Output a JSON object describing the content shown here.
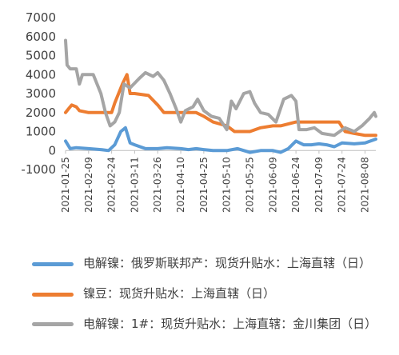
{
  "chart_data": {
    "type": "line",
    "title": "",
    "xlabel": "",
    "ylabel": "",
    "ylim": [
      -1000,
      7000
    ],
    "yticks": [
      "-1000",
      "0",
      "1000",
      "2000",
      "3000",
      "4000",
      "5000",
      "6000",
      "7000"
    ],
    "grid": false,
    "legend_position": "bottom",
    "x_tick_labels": [
      "2021-01-25",
      "2021-02-09",
      "2021-02-24",
      "2021-03-11",
      "2021-03-26",
      "2021-04-10",
      "2021-04-25",
      "2021-05-10",
      "2021-05-25",
      "2021-06-09",
      "2021-06-24",
      "2021-07-09",
      "2021-07-24",
      "2021-08-08"
    ],
    "x_range": [
      "2021-01-25",
      "2021-08-15"
    ],
    "series": [
      {
        "name": "电解镍：俄罗斯联邦产：现货升贴水：上海直辖（日）",
        "color": "#5B9BD5",
        "points": [
          [
            "2021-01-25",
            500
          ],
          [
            "2021-01-28",
            100
          ],
          [
            "2021-02-01",
            150
          ],
          [
            "2021-02-09",
            100
          ],
          [
            "2021-02-17",
            50
          ],
          [
            "2021-02-22",
            0
          ],
          [
            "2021-02-26",
            300
          ],
          [
            "2021-03-02",
            1000
          ],
          [
            "2021-03-05",
            1200
          ],
          [
            "2021-03-08",
            400
          ],
          [
            "2021-03-11",
            300
          ],
          [
            "2021-03-18",
            100
          ],
          [
            "2021-03-26",
            100
          ],
          [
            "2021-04-01",
            150
          ],
          [
            "2021-04-10",
            100
          ],
          [
            "2021-04-15",
            50
          ],
          [
            "2021-04-20",
            100
          ],
          [
            "2021-04-25",
            50
          ],
          [
            "2021-05-01",
            0
          ],
          [
            "2021-05-10",
            0
          ],
          [
            "2021-05-17",
            100
          ],
          [
            "2021-05-25",
            -100
          ],
          [
            "2021-06-01",
            0
          ],
          [
            "2021-06-09",
            0
          ],
          [
            "2021-06-14",
            -100
          ],
          [
            "2021-06-19",
            100
          ],
          [
            "2021-06-24",
            500
          ],
          [
            "2021-06-29",
            300
          ],
          [
            "2021-07-04",
            300
          ],
          [
            "2021-07-09",
            350
          ],
          [
            "2021-07-14",
            300
          ],
          [
            "2021-07-19",
            200
          ],
          [
            "2021-07-24",
            400
          ],
          [
            "2021-08-01",
            350
          ],
          [
            "2021-08-08",
            400
          ],
          [
            "2021-08-15",
            600
          ]
        ]
      },
      {
        "name": "镍豆：现货升贴水：上海直辖（日）",
        "color": "#ED7D31",
        "points": [
          [
            "2021-01-25",
            2000
          ],
          [
            "2021-01-27",
            2200
          ],
          [
            "2021-01-29",
            2400
          ],
          [
            "2021-02-01",
            2300
          ],
          [
            "2021-02-03",
            2100
          ],
          [
            "2021-02-09",
            2000
          ],
          [
            "2021-02-24",
            2000
          ],
          [
            "2021-02-26",
            2500
          ],
          [
            "2021-03-03",
            3500
          ],
          [
            "2021-03-06",
            4000
          ],
          [
            "2021-03-08",
            3000
          ],
          [
            "2021-03-11",
            3000
          ],
          [
            "2021-03-20",
            2900
          ],
          [
            "2021-03-26",
            2400
          ],
          [
            "2021-03-30",
            2000
          ],
          [
            "2021-04-10",
            2000
          ],
          [
            "2021-04-20",
            2000
          ],
          [
            "2021-04-25",
            1800
          ],
          [
            "2021-05-01",
            1500
          ],
          [
            "2021-05-10",
            1300
          ],
          [
            "2021-05-15",
            1000
          ],
          [
            "2021-05-25",
            1000
          ],
          [
            "2021-06-01",
            1200
          ],
          [
            "2021-06-09",
            1300
          ],
          [
            "2021-06-14",
            1300
          ],
          [
            "2021-06-24",
            1500
          ],
          [
            "2021-07-09",
            1500
          ],
          [
            "2021-07-22",
            1500
          ],
          [
            "2021-07-26",
            1000
          ],
          [
            "2021-08-01",
            900
          ],
          [
            "2021-08-08",
            800
          ],
          [
            "2021-08-15",
            800
          ]
        ]
      },
      {
        "name": "电解镍：1#：现货升贴水：上海直辖：金川集团（日）",
        "color": "#A5A5A5",
        "points": [
          [
            "2021-01-25",
            5800
          ],
          [
            "2021-01-26",
            4500
          ],
          [
            "2021-01-28",
            4300
          ],
          [
            "2021-02-01",
            4300
          ],
          [
            "2021-02-03",
            3500
          ],
          [
            "2021-02-05",
            4000
          ],
          [
            "2021-02-12",
            4000
          ],
          [
            "2021-02-17",
            3000
          ],
          [
            "2021-02-20",
            2000
          ],
          [
            "2021-02-23",
            1300
          ],
          [
            "2021-02-26",
            1500
          ],
          [
            "2021-03-01",
            2000
          ],
          [
            "2021-03-04",
            3500
          ],
          [
            "2021-03-08",
            3300
          ],
          [
            "2021-03-14",
            3800
          ],
          [
            "2021-03-18",
            4100
          ],
          [
            "2021-03-23",
            3900
          ],
          [
            "2021-03-26",
            4100
          ],
          [
            "2021-03-30",
            3700
          ],
          [
            "2021-04-03",
            3000
          ],
          [
            "2021-04-07",
            2200
          ],
          [
            "2021-04-10",
            1500
          ],
          [
            "2021-04-13",
            2100
          ],
          [
            "2021-04-18",
            2300
          ],
          [
            "2021-04-21",
            2700
          ],
          [
            "2021-04-25",
            2100
          ],
          [
            "2021-04-30",
            1800
          ],
          [
            "2021-05-05",
            1700
          ],
          [
            "2021-05-10",
            1100
          ],
          [
            "2021-05-13",
            2600
          ],
          [
            "2021-05-16",
            2200
          ],
          [
            "2021-05-21",
            3000
          ],
          [
            "2021-05-25",
            3100
          ],
          [
            "2021-05-28",
            2500
          ],
          [
            "2021-06-01",
            2000
          ],
          [
            "2021-06-06",
            1900
          ],
          [
            "2021-06-11",
            1500
          ],
          [
            "2021-06-16",
            2700
          ],
          [
            "2021-06-21",
            2900
          ],
          [
            "2021-06-24",
            2600
          ],
          [
            "2021-06-26",
            1100
          ],
          [
            "2021-07-01",
            1100
          ],
          [
            "2021-07-06",
            1200
          ],
          [
            "2021-07-11",
            900
          ],
          [
            "2021-07-19",
            800
          ],
          [
            "2021-07-26",
            1200
          ],
          [
            "2021-08-01",
            1000
          ],
          [
            "2021-08-06",
            1300
          ],
          [
            "2021-08-11",
            1700
          ],
          [
            "2021-08-14",
            2000
          ],
          [
            "2021-08-15",
            1800
          ]
        ]
      }
    ]
  },
  "legend": {
    "items": [
      {
        "label": "电解镍：俄罗斯联邦产：现货升贴水：上海直辖（日）",
        "color": "#5B9BD5"
      },
      {
        "label": "镍豆：现货升贴水：上海直辖（日）",
        "color": "#ED7D31"
      },
      {
        "label": "电解镍：1#：现货升贴水：上海直辖：金川集团（日）",
        "color": "#A5A5A5"
      }
    ]
  }
}
